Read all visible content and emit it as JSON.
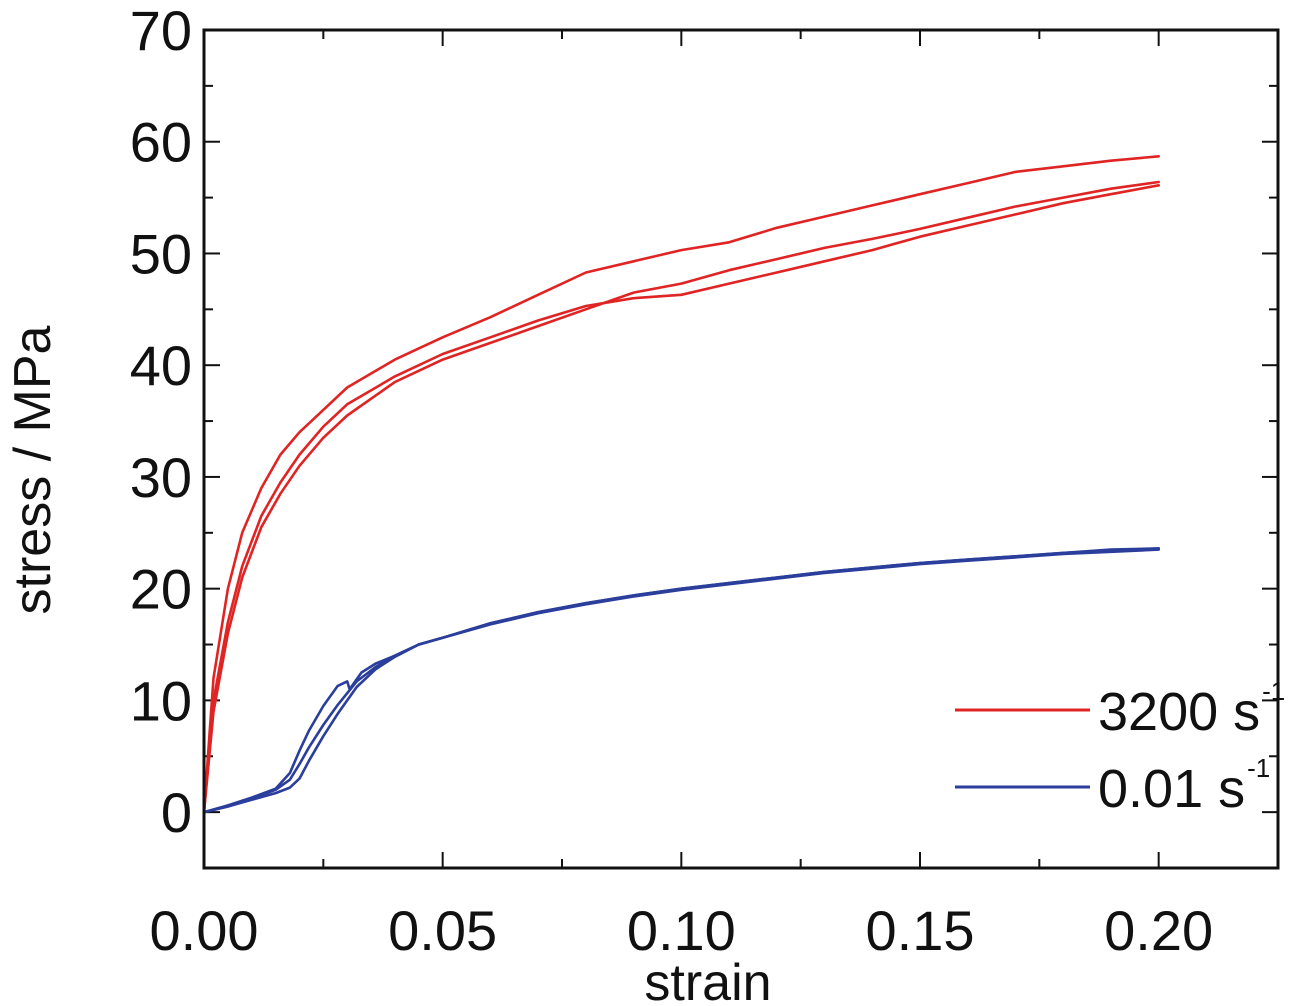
{
  "chart_data": {
    "type": "line",
    "xlabel": "strain",
    "ylabel": "stress / MPa",
    "xlim": [
      0.0,
      0.225
    ],
    "ylim": [
      -5,
      70
    ],
    "xticks": [
      "0.00",
      "0.05",
      "0.10",
      "0.15",
      "0.20"
    ],
    "xtick_values": [
      0.0,
      0.05,
      0.1,
      0.15,
      0.2
    ],
    "yticks": [
      "0",
      "10",
      "20",
      "30",
      "40",
      "50",
      "60",
      "70"
    ],
    "ytick_values": [
      0,
      10,
      20,
      30,
      40,
      50,
      60,
      70
    ],
    "legend": {
      "position": "bottom-right",
      "entries": [
        {
          "label": "3200 s",
          "sup": "-1",
          "color": "#e02424"
        },
        {
          "label": "0.01 s",
          "sup": "-1",
          "color": "#2b3e9c"
        }
      ]
    },
    "series": [
      {
        "group": 0,
        "color": "#e02424",
        "x": [
          0,
          0.002,
          0.005,
          0.008,
          0.012,
          0.016,
          0.02,
          0.025,
          0.03,
          0.04,
          0.05,
          0.06,
          0.07,
          0.08,
          0.09,
          0.1,
          0.11,
          0.12,
          0.13,
          0.14,
          0.15,
          0.16,
          0.17,
          0.18,
          0.19,
          0.2
        ],
        "y": [
          0,
          12,
          20,
          25,
          29,
          32,
          34,
          36,
          38,
          40.5,
          42.5,
          44.3,
          46.3,
          48.3,
          49.3,
          50.3,
          51,
          52.3,
          53.3,
          54.3,
          55.3,
          56.3,
          57.3,
          57.8,
          58.3,
          58.7
        ]
      },
      {
        "group": 0,
        "color": "#e02424",
        "x": [
          0,
          0.002,
          0.005,
          0.008,
          0.012,
          0.016,
          0.02,
          0.025,
          0.03,
          0.04,
          0.05,
          0.06,
          0.07,
          0.08,
          0.09,
          0.1,
          0.11,
          0.12,
          0.13,
          0.14,
          0.15,
          0.16,
          0.17,
          0.18,
          0.19,
          0.2
        ],
        "y": [
          0,
          9,
          16,
          21,
          25.5,
          28.5,
          31,
          33.5,
          35.5,
          38.5,
          40.5,
          42,
          43.5,
          45,
          46.5,
          47.3,
          48.5,
          49.5,
          50.5,
          51.3,
          52.2,
          53.2,
          54.2,
          55,
          55.8,
          56.4
        ]
      },
      {
        "group": 0,
        "color": "#e02424",
        "x": [
          0,
          0.002,
          0.005,
          0.008,
          0.012,
          0.016,
          0.02,
          0.025,
          0.03,
          0.04,
          0.05,
          0.06,
          0.07,
          0.08,
          0.09,
          0.1,
          0.11,
          0.12,
          0.13,
          0.14,
          0.15,
          0.16,
          0.17,
          0.18,
          0.19,
          0.2
        ],
        "y": [
          0,
          10,
          17,
          22,
          26.5,
          29.5,
          32,
          34.5,
          36.5,
          39,
          41,
          42.5,
          44,
          45.3,
          46,
          46.3,
          47.3,
          48.3,
          49.3,
          50.3,
          51.5,
          52.5,
          53.5,
          54.5,
          55.3,
          56.1
        ]
      },
      {
        "group": 1,
        "color": "#2b3e9c",
        "x": [
          0,
          0.005,
          0.01,
          0.015,
          0.018,
          0.02,
          0.022,
          0.025,
          0.028,
          0.03,
          0.0305,
          0.033,
          0.036,
          0.04,
          0.045,
          0.05,
          0.06,
          0.07,
          0.08,
          0.09,
          0.1,
          0.11,
          0.12,
          0.13,
          0.14,
          0.15,
          0.16,
          0.17,
          0.18,
          0.19,
          0.2
        ],
        "y": [
          0,
          0.6,
          1.3,
          2.1,
          3.5,
          5.5,
          7.3,
          9.5,
          11.3,
          11.7,
          11,
          12.5,
          13.3,
          14,
          15,
          15.6,
          16.9,
          17.9,
          18.7,
          19.4,
          20,
          20.5,
          21,
          21.5,
          21.9,
          22.3,
          22.6,
          22.9,
          23.2,
          23.5,
          23.6
        ]
      },
      {
        "group": 1,
        "color": "#2b3e9c",
        "x": [
          0,
          0.005,
          0.01,
          0.015,
          0.018,
          0.02,
          0.022,
          0.025,
          0.028,
          0.032,
          0.036,
          0.04,
          0.045,
          0.05,
          0.06,
          0.07,
          0.08,
          0.09,
          0.1,
          0.11,
          0.12,
          0.13,
          0.14,
          0.15,
          0.16,
          0.17,
          0.18,
          0.19,
          0.2
        ],
        "y": [
          0,
          0.5,
          1.2,
          2,
          2.9,
          4.3,
          5.8,
          7.8,
          9.6,
          11.7,
          13,
          14,
          15,
          15.6,
          16.9,
          17.9,
          18.7,
          19.4,
          20,
          20.5,
          21,
          21.5,
          21.9,
          22.3,
          22.6,
          22.9,
          23.2,
          23.4,
          23.6
        ]
      },
      {
        "group": 1,
        "color": "#2b3e9c",
        "x": [
          0,
          0.005,
          0.01,
          0.015,
          0.018,
          0.02,
          0.022,
          0.025,
          0.028,
          0.032,
          0.036,
          0.04,
          0.045,
          0.05,
          0.06,
          0.07,
          0.08,
          0.09,
          0.1,
          0.11,
          0.12,
          0.13,
          0.14,
          0.15,
          0.16,
          0.17,
          0.18,
          0.19,
          0.2
        ],
        "y": [
          0,
          0.5,
          1.1,
          1.7,
          2.2,
          3.0,
          4.6,
          6.8,
          8.8,
          11.2,
          12.8,
          13.9,
          15,
          15.6,
          16.8,
          17.8,
          18.6,
          19.3,
          19.9,
          20.4,
          20.9,
          21.4,
          21.8,
          22.2,
          22.5,
          22.8,
          23.1,
          23.3,
          23.5
        ]
      }
    ]
  }
}
